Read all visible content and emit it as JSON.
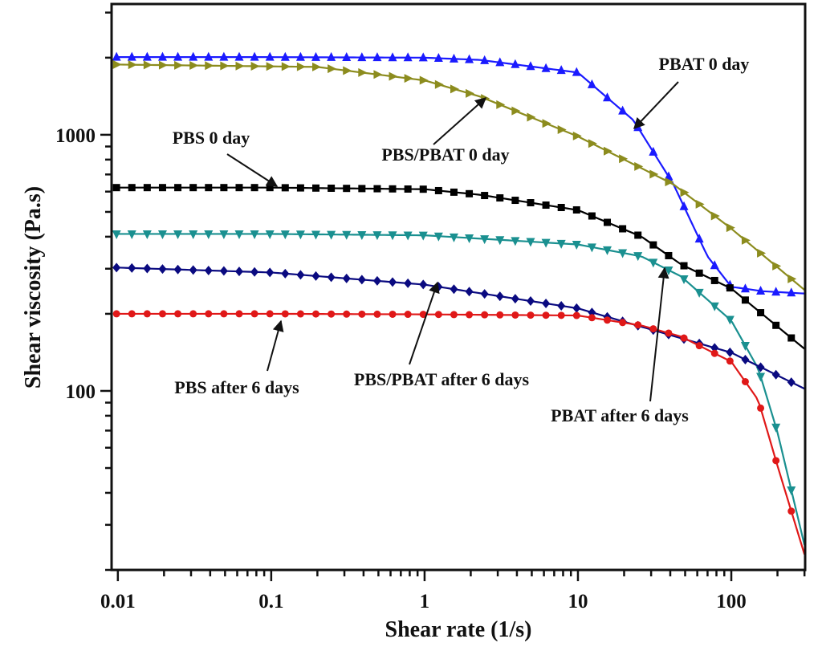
{
  "chart_data": {
    "type": "line",
    "title": "",
    "xlabel": "Shear rate (1/s)",
    "ylabel": "Shear viscosity (Pa.s)",
    "xscale": "log",
    "yscale": "log",
    "xlim": [
      0.0091,
      303
    ],
    "ylim": [
      20,
      3240
    ],
    "x_ticks": [
      0.01,
      0.1,
      1,
      10,
      100
    ],
    "x_tick_labels": [
      "0.01",
      "0.1",
      "1",
      "10",
      "100"
    ],
    "y_ticks": [
      100,
      1000
    ],
    "y_tick_labels": [
      "100",
      "1000"
    ],
    "grid": false,
    "legend": "none (inline annotations)",
    "series": [
      {
        "name": "PBAT 0 day",
        "color": "#1a1aff",
        "marker": "triangle-up",
        "x": [
          0.01,
          0.1,
          1,
          2.3,
          10,
          23,
          42,
          70,
          100,
          160,
          300
        ],
        "y": [
          2010,
          2010,
          2000,
          1960,
          1750,
          1140,
          640,
          335,
          255,
          245,
          240
        ]
      },
      {
        "name": "PBS/PBAT 0 day",
        "color": "#8c8c1e",
        "marker": "triangle-right",
        "x": [
          0.01,
          0.2,
          1,
          2.3,
          10,
          26,
          42,
          100,
          300
        ],
        "y": [
          1880,
          1840,
          1630,
          1410,
          985,
          740,
          640,
          430,
          248
        ]
      },
      {
        "name": "PBS 0 day",
        "color": "#000000",
        "marker": "square",
        "x": [
          0.01,
          0.1,
          1,
          2.3,
          10,
          26,
          47,
          100,
          300
        ],
        "y": [
          622,
          622,
          613,
          583,
          508,
          400,
          312,
          251,
          146
        ]
      },
      {
        "name": "PBAT after 6 days",
        "color": "#1a9090",
        "marker": "triangle-down",
        "x": [
          0.01,
          0.1,
          1,
          10,
          26,
          47,
          100,
          150,
          200,
          300
        ],
        "y": [
          410,
          410,
          405,
          373,
          335,
          280,
          188,
          122,
          69,
          25
        ]
      },
      {
        "name": "PBS/PBAT after 6 days",
        "color": "#0a0a80",
        "marker": "diamond",
        "x": [
          0.01,
          0.1,
          1,
          10,
          26,
          100,
          300
        ],
        "y": [
          303,
          290,
          260,
          210,
          178,
          141,
          102
        ]
      },
      {
        "name": "PBS after 6 days",
        "color": "#e01818",
        "marker": "circle",
        "x": [
          0.01,
          0.1,
          1,
          10,
          26,
          47,
          100,
          150,
          200,
          300
        ],
        "y": [
          200,
          200,
          199,
          197,
          180,
          163,
          130,
          92,
          51,
          23
        ]
      }
    ],
    "annotations": [
      "PBAT 0 day",
      "PBS/PBAT 0 day",
      "PBS 0 day",
      "PBS after 6 days",
      "PBS/PBAT after 6 days",
      "PBAT after 6 days"
    ]
  }
}
